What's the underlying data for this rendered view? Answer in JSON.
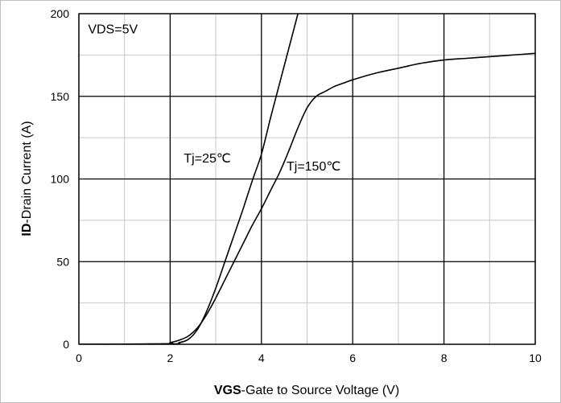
{
  "chart_data": {
    "type": "line",
    "xlabel_bold": "VGS",
    "xlabel_rest": "-Gate to Source Voltage (V)",
    "ylabel_bold": "ID",
    "ylabel_rest": "-Drain Current (A)",
    "xlim": [
      0,
      10
    ],
    "ylim": [
      0,
      200
    ],
    "x_ticks": [
      "0",
      "2",
      "4",
      "6",
      "8",
      "10"
    ],
    "y_ticks": [
      "0",
      "50",
      "100",
      "150",
      "200"
    ],
    "grid": {
      "major": true,
      "minor": true
    },
    "annotations": [
      {
        "text": "VDS=5V",
        "x": 0.2,
        "y": 188
      },
      {
        "text": "Tj=25℃",
        "x": 2.3,
        "y": 110
      },
      {
        "text": "Tj=150℃",
        "x": 4.55,
        "y": 105
      }
    ],
    "series": [
      {
        "name": "Tj=25℃",
        "x": [
          0,
          2.0,
          2.2,
          2.4,
          2.6,
          2.8,
          3.0,
          3.2,
          3.4,
          3.6,
          3.8,
          4.0,
          4.2,
          4.4,
          4.6,
          4.8
        ],
        "y": [
          0,
          0.2,
          1,
          3,
          9,
          20,
          34,
          50,
          66,
          82,
          99,
          115,
          137,
          158,
          179,
          200
        ]
      },
      {
        "name": "Tj=150℃",
        "x": [
          0,
          1.9,
          2.0,
          2.2,
          2.4,
          2.6,
          2.8,
          3.0,
          3.2,
          3.4,
          3.6,
          3.8,
          4.0,
          4.2,
          4.4,
          4.6,
          4.8,
          5.0,
          5.2,
          5.4,
          5.6,
          5.8,
          6.0,
          6.5,
          7.0,
          7.5,
          8.0,
          8.5,
          9.0,
          9.5,
          10.0
        ],
        "y": [
          0,
          0.3,
          1,
          2.5,
          5,
          10,
          18,
          28,
          39,
          50,
          61,
          72,
          82,
          93,
          104,
          117,
          131,
          143,
          150,
          153,
          156,
          158,
          160,
          164,
          167,
          170,
          172,
          173,
          174,
          175,
          176
        ]
      }
    ]
  }
}
